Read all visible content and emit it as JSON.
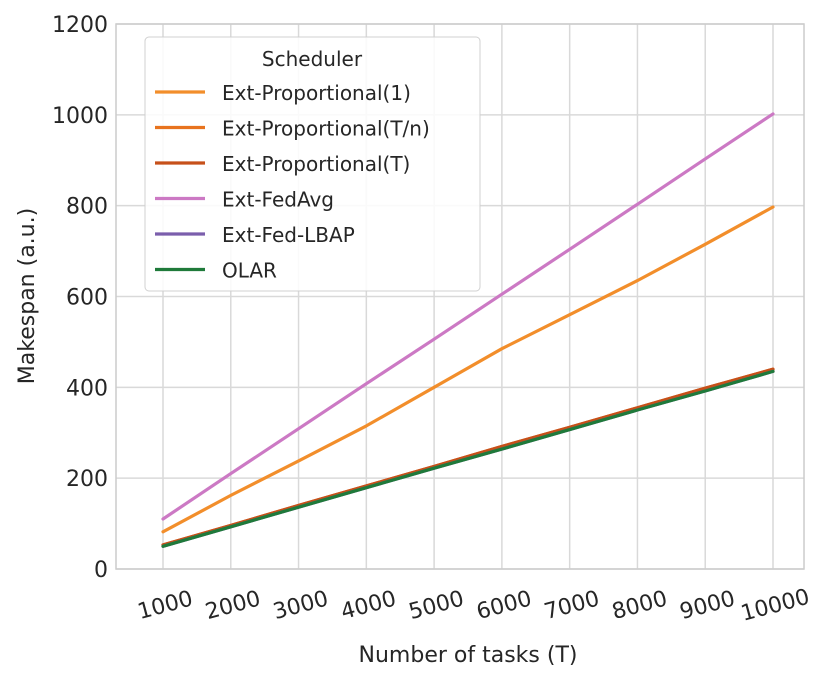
{
  "chart_data": {
    "type": "line",
    "xlabel": "Number of tasks (T)",
    "ylabel": "Makespan (a.u.)",
    "xlim": [
      1000,
      10000
    ],
    "ylim": [
      0,
      1200
    ],
    "x_ticks": [
      1000,
      2000,
      3000,
      4000,
      5000,
      6000,
      7000,
      8000,
      9000,
      10000
    ],
    "y_ticks": [
      0,
      200,
      400,
      600,
      800,
      1000,
      1200
    ],
    "x_tick_labels": [
      "1000",
      "2000",
      "3000",
      "4000",
      "5000",
      "6000",
      "7000",
      "8000",
      "9000",
      "10000"
    ],
    "y_tick_labels": [
      "0",
      "200",
      "400",
      "600",
      "800",
      "1000",
      "1200"
    ],
    "grid": true,
    "legend": {
      "title": "Scheduler",
      "placement": "top-left"
    },
    "x": [
      1000,
      2000,
      3000,
      4000,
      5000,
      6000,
      7000,
      8000,
      9000,
      10000
    ],
    "series": [
      {
        "name": "Ext-Proportional(1)",
        "color": "#f28e2b",
        "values": [
          82,
          162,
          238,
          315,
          400,
          485,
          560,
          635,
          715,
          797
        ]
      },
      {
        "name": "Ext-Proportional(T/n)",
        "color": "#e8731e",
        "values": [
          53,
          96,
          140,
          183,
          226,
          270,
          312,
          355,
          398,
          440
        ]
      },
      {
        "name": "Ext-Proportional(T)",
        "color": "#c6501a",
        "values": [
          53,
          96,
          140,
          183,
          226,
          270,
          312,
          355,
          398,
          440
        ]
      },
      {
        "name": "Ext-FedAvg",
        "color": "#cc79c4",
        "values": [
          110,
          210,
          309,
          408,
          506,
          605,
          704,
          803,
          903,
          1002
        ]
      },
      {
        "name": "Ext-Fed-LBAP",
        "color": "#7b5eac",
        "values": [
          50,
          93,
          136,
          179,
          222,
          264,
          307,
          350,
          392,
          435
        ]
      },
      {
        "name": "OLAR",
        "color": "#1f7a3a",
        "values": [
          50,
          93,
          136,
          179,
          222,
          264,
          307,
          350,
          392,
          435
        ]
      }
    ]
  }
}
